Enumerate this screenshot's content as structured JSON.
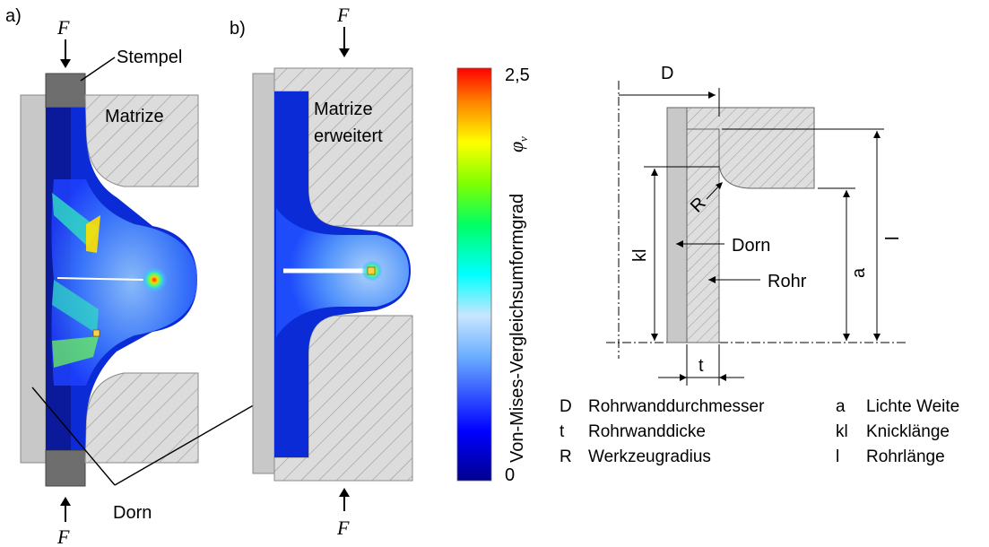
{
  "panel_a": {
    "label": "a)",
    "force_top": "F",
    "force_bottom": "F",
    "stempel": "Stempel",
    "matrize": "Matrize",
    "dorn": "Dorn"
  },
  "panel_b": {
    "label": "b)",
    "force_top": "F",
    "force_bottom": "F",
    "matrize_line1": "Matrize",
    "matrize_line2": "erweitert"
  },
  "colorbar": {
    "max_label": "2,5",
    "min_label": "0",
    "title": "Von-Mises-Vergleichsumformgrad",
    "symbol": "φ",
    "symbol_sub": "v",
    "colors": [
      "#00008f",
      "#0000ff",
      "#5fa8ff",
      "#bfe3ff",
      "#00ffff",
      "#00ff66",
      "#7fff00",
      "#ffff00",
      "#ff8000",
      "#ff0000"
    ]
  },
  "schematic": {
    "D": "D",
    "R": "R",
    "kl": "kl",
    "l": "l",
    "a": "a",
    "t": "t",
    "dorn": "Dorn",
    "rohr": "Rohr"
  },
  "legend": [
    {
      "sym": "D",
      "text": "Rohrwanddurchmesser"
    },
    {
      "sym": "t",
      "text": "Rohrwanddicke"
    },
    {
      "sym": "R",
      "text": "Werkzeugradius"
    },
    {
      "sym": "a",
      "text": "Lichte Weite"
    },
    {
      "sym": "kl",
      "text": "Knicklänge"
    },
    {
      "sym": "l",
      "text": "Rohrlänge"
    }
  ]
}
